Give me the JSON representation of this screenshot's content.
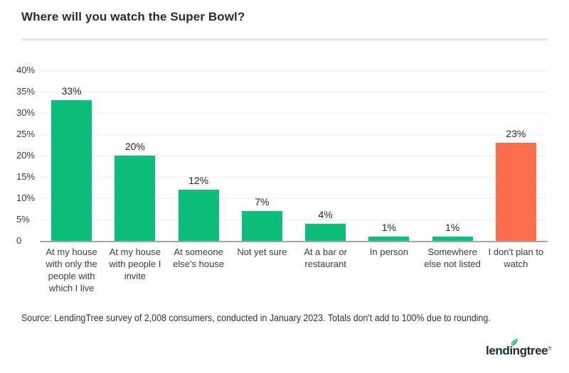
{
  "header": {
    "title": "Where will you watch the Super Bowl?"
  },
  "chart_data": {
    "type": "bar",
    "title": "Where will you watch the Super Bowl?",
    "categories": [
      "At my house with only the people with which I live",
      "At my house with people I invite",
      "At someone else's house",
      "Not yet sure",
      "At a bar or restaurant",
      "In person",
      "Somewhere else not listed",
      "I don't plan to watch"
    ],
    "values": [
      33,
      20,
      12,
      7,
      4,
      1,
      1,
      23
    ],
    "value_labels": [
      "33%",
      "20%",
      "12%",
      "7%",
      "4%",
      "1%",
      "1%",
      "23%"
    ],
    "bar_colors": [
      "#0dbe7b",
      "#0dbe7b",
      "#0dbe7b",
      "#0dbe7b",
      "#0dbe7b",
      "#0dbe7b",
      "#0dbe7b",
      "#fd6e4c"
    ],
    "xlabel": "",
    "ylabel": "",
    "ylim": [
      0,
      40
    ],
    "yticks": [
      "40%",
      "35%",
      "30%",
      "25%",
      "20%",
      "15%",
      "10%",
      "5%",
      "0"
    ],
    "grid": true,
    "legend": false
  },
  "colors": {
    "bar_green": "#0dbe7b",
    "bar_orange": "#fd6e4c",
    "gridline": "#ededed",
    "axis_line": "#a6a6a6",
    "title_text": "#2c2c2c",
    "logo_navy": "#1b2a38",
    "leaf_green": "#21b573"
  },
  "footer": {
    "source": "Source: LendingTree survey of 2,008 consumers, conducted in January 2023. Totals don't add to 100% due to rounding."
  },
  "logo": {
    "text": "lendingtree",
    "trademark": "®"
  }
}
